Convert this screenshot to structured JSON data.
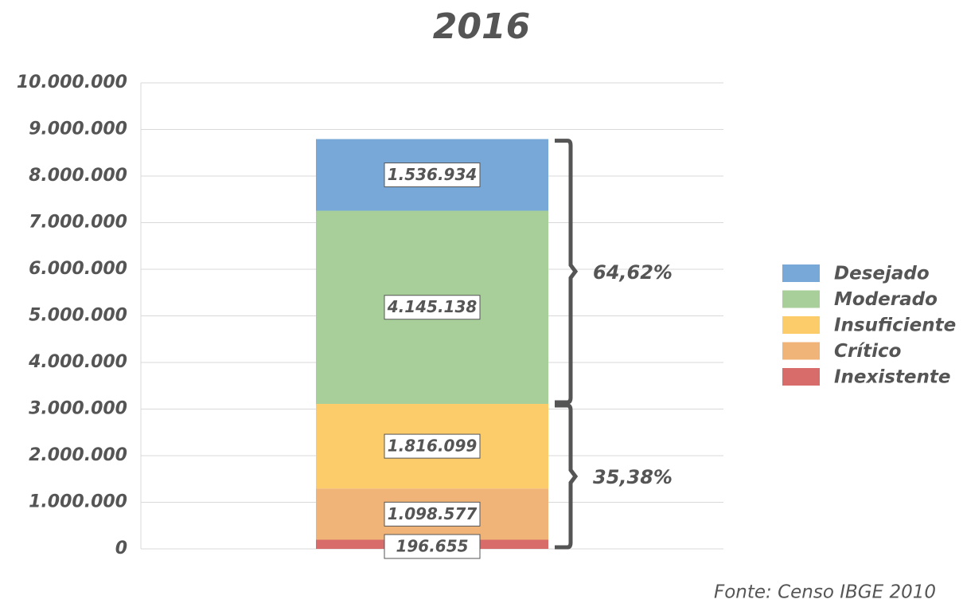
{
  "chart_data": {
    "type": "stacked_bar",
    "title": "2016",
    "categories": [
      null
    ],
    "series": [
      {
        "name": "Inexistente",
        "color": "#d86c6a",
        "values": [
          196655
        ],
        "value_labels": [
          "196.655"
        ]
      },
      {
        "name": "Crítico",
        "color": "#f0b478",
        "values": [
          1098577
        ],
        "value_labels": [
          "1.098.577"
        ]
      },
      {
        "name": "Insuficiente",
        "color": "#fccb6a",
        "values": [
          1816099
        ],
        "value_labels": [
          "1.816.099"
        ]
      },
      {
        "name": "Moderado",
        "color": "#a8cf9a",
        "values": [
          4145138
        ],
        "value_labels": [
          "4.145.138"
        ]
      },
      {
        "name": "Desejado",
        "color": "#78a8d8",
        "values": [
          1536934
        ],
        "value_labels": [
          "1.536.934"
        ]
      }
    ],
    "annotations": [
      "64,62%",
      "35,38%"
    ],
    "ylim": [
      0,
      10000000
    ],
    "yticks": [
      0,
      {
        "value": 1000000,
        "label": "1.000.000"
      },
      {
        "value": 2000000,
        "label": "2.000.000"
      },
      {
        "value": 3000000,
        "label": "3.000.000"
      },
      {
        "value": 4000000,
        "label": "4.000.000"
      },
      {
        "value": 5000000,
        "label": "5.000.000"
      },
      {
        "value": 6000000,
        "label": "6.000.000"
      },
      {
        "value": 7000000,
        "label": "7.000.000"
      },
      {
        "value": 8000000,
        "label": "8.000.000"
      },
      {
        "value": 9000000,
        "label": "9.000.000"
      },
      {
        "value": 10000000,
        "label": "10.000.000"
      }
    ],
    "grid": true,
    "legend": "right",
    "source": "Fonte: Censo IBGE 2010"
  }
}
